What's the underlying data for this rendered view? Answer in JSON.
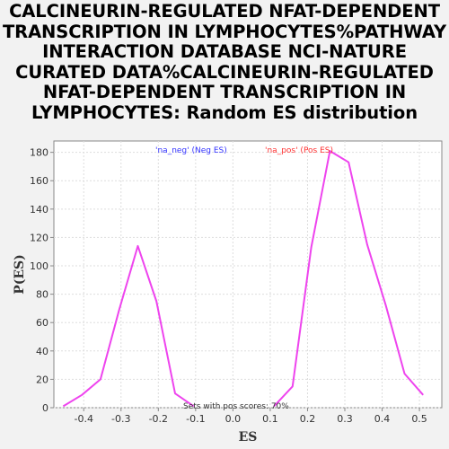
{
  "chart_data": {
    "type": "line",
    "title_lines": [
      "CALCINEURIN-REGULATED NFAT-DEPENDENT",
      "TRANSCRIPTION IN LYMPHOCYTES%PATHWAY",
      "INTERACTION DATABASE NCI-NATURE",
      "CURATED DATA%CALCINEURIN-REGULATED",
      "NFAT-DEPENDENT TRANSCRIPTION IN",
      "LYMPHOCYTES: Random ES distribution"
    ],
    "xlabel": "ES",
    "ylabel": "P(ES)",
    "xlim": [
      -0.48,
      0.56
    ],
    "ylim": [
      0,
      188
    ],
    "xticks": [
      "-0.4",
      "-0.3",
      "-0.2",
      "-0.1",
      "0.0",
      "0.1",
      "0.2",
      "0.3",
      "0.4",
      "0.5"
    ],
    "xtick_values": [
      -0.4,
      -0.3,
      -0.2,
      -0.1,
      0.0,
      0.1,
      0.2,
      0.3,
      0.4,
      0.5
    ],
    "yticks": [
      "0",
      "20",
      "40",
      "60",
      "80",
      "100",
      "120",
      "140",
      "160",
      "180"
    ],
    "ytick_values": [
      0,
      20,
      40,
      60,
      80,
      100,
      120,
      140,
      160,
      180
    ],
    "grid": true,
    "legend": [
      {
        "label": "'na_neg' (Neg ES)",
        "color": "#3333ff"
      },
      {
        "label": "'na_pos' (Pos ES)",
        "color": "#ff3333"
      }
    ],
    "annotation": "Sets with pos scores: 70%",
    "line_color": "#ee44ee",
    "series": [
      {
        "x": [
          -0.455,
          -0.405,
          -0.355,
          -0.305,
          -0.255,
          -0.205,
          -0.155,
          -0.105
        ],
        "y": [
          1,
          9,
          20,
          69,
          114,
          75,
          10,
          1
        ]
      },
      {
        "x": [
          0.11,
          0.16,
          0.21,
          0.26,
          0.31,
          0.36,
          0.41,
          0.46,
          0.51
        ],
        "y": [
          1,
          15,
          113,
          181,
          173,
          115,
          72,
          24,
          9
        ]
      }
    ]
  }
}
